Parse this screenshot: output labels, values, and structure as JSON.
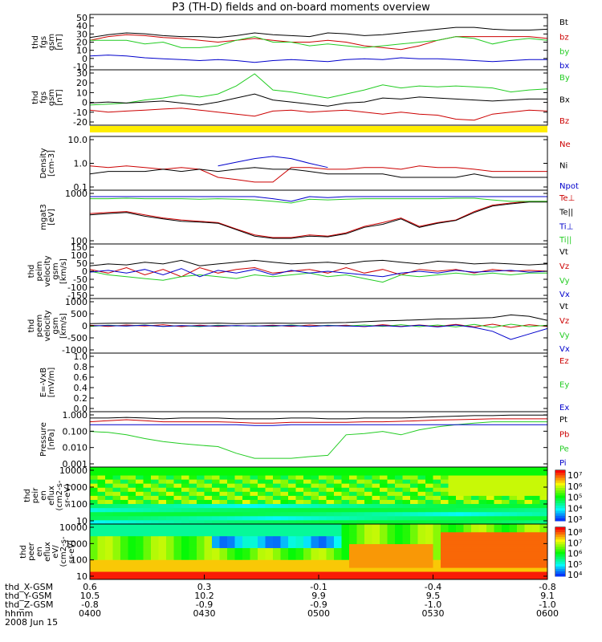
{
  "title": "P3 (TH-D) fields and on-board moments overview",
  "colors": {
    "black": "#000000",
    "red": "#cc0000",
    "green": "#22cc22",
    "blue": "#0000cc",
    "yellow": "#ffee00"
  },
  "colorbars": [
    {
      "labels": [
        "10⁷",
        "10⁶",
        "10⁵",
        "10⁴",
        "10³"
      ]
    },
    {
      "labels": [
        "10⁸",
        "10⁷",
        "10⁶",
        "10⁵",
        "10⁴"
      ]
    }
  ],
  "chart_data": [
    {
      "type": "line",
      "ylabel": [
        "thd",
        "fgs",
        "gsm",
        "[nT]"
      ],
      "ylim": [
        -10,
        50
      ],
      "yticks": [
        "50",
        "40",
        "30",
        "20",
        "10",
        "0",
        "-10"
      ],
      "series": [
        {
          "name": "Bt",
          "color": "black",
          "values": [
            25,
            28,
            30,
            29,
            27,
            26,
            26,
            25,
            27,
            30,
            28,
            27,
            26,
            30,
            29,
            27,
            28,
            30,
            32,
            34,
            36,
            36,
            34,
            33,
            33,
            34
          ]
        },
        {
          "name": "bz",
          "color": "red",
          "values": [
            22,
            26,
            28,
            27,
            25,
            24,
            22,
            20,
            22,
            24,
            22,
            20,
            20,
            22,
            20,
            16,
            14,
            12,
            16,
            22,
            26,
            26,
            26,
            26,
            26,
            24
          ]
        },
        {
          "name": "by",
          "color": "green",
          "values": [
            22,
            22,
            22,
            18,
            20,
            14,
            14,
            16,
            22,
            26,
            20,
            20,
            16,
            18,
            16,
            14,
            16,
            18,
            20,
            22,
            26,
            24,
            18,
            22,
            24,
            22
          ]
        },
        {
          "name": "bx",
          "color": "blue",
          "values": [
            5,
            6,
            5,
            3,
            2,
            1,
            0,
            1,
            0,
            -2,
            0,
            1,
            0,
            -1,
            1,
            2,
            1,
            3,
            2,
            2,
            1,
            0,
            -1,
            0,
            1,
            1
          ]
        }
      ]
    },
    {
      "type": "line",
      "ylabel": [
        "thd",
        "fgs",
        "gsm",
        "[nT]"
      ],
      "ylim": [
        -25,
        30
      ],
      "yticks": [
        "30",
        "20",
        "10",
        "0",
        "-10",
        "-20"
      ],
      "series": [
        {
          "name": "By",
          "color": "green",
          "values": [
            -5,
            -4,
            -3,
            0,
            2,
            5,
            3,
            6,
            14,
            26,
            10,
            8,
            5,
            2,
            6,
            10,
            15,
            12,
            14,
            13,
            14,
            13,
            12,
            8,
            10,
            11
          ]
        },
        {
          "name": "Bx",
          "color": "black",
          "values": [
            -3,
            -2,
            -3,
            -2,
            -1,
            -3,
            -5,
            -2,
            2,
            6,
            0,
            -2,
            -4,
            -6,
            -3,
            -2,
            2,
            1,
            3,
            2,
            1,
            0,
            -1,
            0,
            1,
            1
          ]
        },
        {
          "name": "Bz",
          "color": "red",
          "values": [
            -10,
            -12,
            -11,
            -10,
            -9,
            -8,
            -10,
            -12,
            -14,
            -16,
            -11,
            -10,
            -12,
            -11,
            -10,
            -12,
            -14,
            -12,
            -14,
            -15,
            -19,
            -20,
            -14,
            -12,
            -10,
            -11
          ]
        }
      ]
    },
    {
      "type": "line",
      "ylabel": [
        "Density",
        "[cm-3]"
      ],
      "scale": "log",
      "ylim": [
        0.1,
        10
      ],
      "yticks": [
        "10.0",
        "1.0",
        "0.1"
      ],
      "series": [
        {
          "name": "Ne",
          "color": "red",
          "values": [
            0.8,
            0.7,
            0.8,
            0.7,
            0.6,
            0.7,
            0.6,
            0.3,
            0.25,
            0.2,
            0.2,
            0.7,
            0.7,
            0.6,
            0.6,
            0.7,
            0.7,
            0.6,
            0.8,
            0.7,
            0.7,
            0.6,
            0.5,
            0.5,
            0.5,
            0.5
          ]
        },
        {
          "name": "Ni",
          "color": "black",
          "values": [
            0.4,
            0.5,
            0.5,
            0.5,
            0.6,
            0.5,
            0.6,
            0.5,
            0.6,
            0.7,
            0.6,
            0.6,
            0.5,
            0.4,
            0.4,
            0.4,
            0.4,
            0.3,
            0.3,
            0.3,
            0.3,
            0.4,
            0.3,
            0.3,
            0.3,
            0.3
          ]
        },
        {
          "name": "Npot",
          "color": "blue",
          "values": [
            null,
            null,
            null,
            null,
            null,
            null,
            null,
            0.8,
            1.1,
            1.5,
            1.8,
            1.5,
            1.0,
            0.7,
            null,
            null,
            null,
            null,
            null,
            null,
            null,
            null,
            null,
            null,
            null,
            null
          ]
        }
      ]
    },
    {
      "type": "line",
      "ylabel": [
        "mgat3",
        "[eV]"
      ],
      "scale": "log",
      "ylim": [
        30,
        10000
      ],
      "yticks": [
        "1000",
        "100"
      ],
      "series": [
        {
          "name": "Te⊥",
          "color": "red",
          "values": [
            800,
            900,
            1000,
            700,
            500,
            400,
            350,
            300,
            150,
            80,
            60,
            60,
            80,
            70,
            100,
            200,
            300,
            500,
            200,
            300,
            400,
            1000,
            2000,
            2500,
            3000,
            3000
          ]
        },
        {
          "name": "Te||",
          "color": "black",
          "values": [
            700,
            800,
            900,
            600,
            450,
            350,
            320,
            280,
            140,
            70,
            55,
            55,
            70,
            65,
            90,
            180,
            250,
            450,
            180,
            280,
            380,
            900,
            1800,
            2300,
            2800,
            2800
          ]
        },
        {
          "name": "Ti⊥",
          "color": "blue",
          "values": [
            5000,
            5000,
            5000,
            5000,
            5000,
            5000,
            5000,
            5000,
            5000,
            5000,
            4000,
            3000,
            5000,
            4500,
            5000,
            5000,
            5000,
            5000,
            5000,
            5000,
            5000,
            5000,
            5000,
            5000,
            5000,
            5000
          ]
        },
        {
          "name": "Ti||",
          "color": "green",
          "values": [
            4000,
            4000,
            4200,
            4000,
            4000,
            4000,
            3800,
            4000,
            3800,
            3500,
            3000,
            2500,
            3800,
            3500,
            3800,
            4000,
            4000,
            4000,
            4000,
            4000,
            4200,
            4200,
            3500,
            3000,
            3000,
            3000
          ]
        }
      ]
    },
    {
      "type": "line",
      "ylabel": [
        "thd",
        "peim",
        "velocity",
        "gsm",
        "[km/s]"
      ],
      "ylim": [
        -150,
        150
      ],
      "yticks": [
        "150",
        "100",
        "50",
        "0",
        "-50",
        "-100",
        "-150"
      ],
      "series": [
        {
          "name": "Vt",
          "color": "black",
          "values": [
            30,
            40,
            35,
            50,
            40,
            60,
            30,
            40,
            50,
            60,
            50,
            40,
            45,
            50,
            40,
            55,
            60,
            50,
            40,
            55,
            50,
            40,
            45,
            40,
            35,
            40
          ]
        },
        {
          "name": "Vz",
          "color": "red",
          "values": [
            10,
            -10,
            20,
            -20,
            10,
            -30,
            20,
            -10,
            10,
            20,
            -10,
            0,
            10,
            -10,
            20,
            -10,
            10,
            -20,
            10,
            0,
            10,
            -10,
            10,
            0,
            5,
            0
          ]
        },
        {
          "name": "Vy",
          "color": "green",
          "values": [
            0,
            -20,
            -30,
            -40,
            -50,
            -30,
            -20,
            -30,
            -40,
            -20,
            -30,
            -20,
            -10,
            -30,
            -20,
            -40,
            -60,
            -20,
            -30,
            -20,
            -10,
            -20,
            -10,
            -20,
            -10,
            -10
          ]
        },
        {
          "name": "Vx",
          "color": "blue",
          "values": [
            -5,
            5,
            -10,
            10,
            -20,
            15,
            -30,
            5,
            -10,
            10,
            -20,
            5,
            -10,
            0,
            -10,
            -20,
            -30,
            -10,
            0,
            -10,
            5,
            -5,
            0,
            5,
            -5,
            0
          ]
        }
      ]
    },
    {
      "type": "line",
      "ylabel": [
        "thd",
        "peem",
        "velocity",
        "gsm",
        "[km/s]"
      ],
      "ylim": [
        -1000,
        1000
      ],
      "yticks": [
        "1000",
        "500",
        "0",
        "-500",
        "-1000"
      ],
      "series": [
        {
          "name": "Vt",
          "color": "black",
          "values": [
            80,
            90,
            100,
            90,
            110,
            100,
            90,
            100,
            80,
            90,
            100,
            90,
            100,
            110,
            120,
            150,
            180,
            200,
            220,
            250,
            260,
            280,
            300,
            400,
            350,
            200
          ]
        },
        {
          "name": "Vz",
          "color": "red",
          "values": [
            20,
            -20,
            30,
            -10,
            40,
            -30,
            20,
            -20,
            10,
            -10,
            20,
            -20,
            30,
            -10,
            20,
            -30,
            40,
            -20,
            30,
            -20,
            50,
            -40,
            60,
            -60,
            40,
            -20
          ]
        },
        {
          "name": "Vy",
          "color": "green",
          "values": [
            -20,
            20,
            -10,
            30,
            -20,
            10,
            -30,
            20,
            -10,
            10,
            -20,
            30,
            -20,
            20,
            -10,
            30,
            -20,
            40,
            -30,
            30,
            -40,
            50,
            -60,
            60,
            -30,
            20
          ]
        },
        {
          "name": "Vx",
          "color": "blue",
          "values": [
            0,
            10,
            -10,
            20,
            -20,
            10,
            -10,
            0,
            10,
            -10,
            0,
            10,
            -20,
            10,
            -10,
            -20,
            10,
            -30,
            20,
            -40,
            30,
            -60,
            -200,
            -500,
            -300,
            -100
          ]
        }
      ]
    },
    {
      "type": "line",
      "ylabel": [
        "E=-VxB",
        "[mV/m]"
      ],
      "ylim": [
        0.0,
        1.0
      ],
      "yticks": [
        "1.0",
        "0.8",
        "0.6",
        "0.4",
        "0.2",
        "0.0"
      ],
      "series": [
        {
          "name": "Ez",
          "color": "red",
          "values": []
        },
        {
          "name": "Ey",
          "color": "green",
          "values": []
        },
        {
          "name": "Ex",
          "color": "blue",
          "values": []
        }
      ]
    },
    {
      "type": "line",
      "ylabel": [
        "Pressure",
        "[nPa]"
      ],
      "scale": "log",
      "ylim": [
        0.0006,
        1.2
      ],
      "yticks": [
        "1.000",
        "0.100",
        "0.010",
        "0.001"
      ],
      "series": [
        {
          "name": "Pt",
          "color": "black",
          "values": [
            0.5,
            0.5,
            0.55,
            0.5,
            0.45,
            0.5,
            0.5,
            0.5,
            0.45,
            0.45,
            0.45,
            0.5,
            0.5,
            0.45,
            0.45,
            0.5,
            0.5,
            0.5,
            0.55,
            0.6,
            0.65,
            0.7,
            0.7,
            0.75,
            0.75,
            0.75
          ]
        },
        {
          "name": "Pb",
          "color": "red",
          "values": [
            0.3,
            0.35,
            0.4,
            0.35,
            0.3,
            0.3,
            0.3,
            0.3,
            0.28,
            0.25,
            0.25,
            0.28,
            0.28,
            0.28,
            0.28,
            0.3,
            0.3,
            0.32,
            0.35,
            0.38,
            0.4,
            0.42,
            0.45,
            0.45,
            0.45,
            0.45
          ]
        },
        {
          "name": "Pe",
          "color": "green",
          "values": [
            0.08,
            0.07,
            0.05,
            0.03,
            0.02,
            0.015,
            0.012,
            0.01,
            0.004,
            0.002,
            0.002,
            0.002,
            0.0025,
            0.003,
            0.05,
            0.06,
            0.08,
            0.05,
            0.1,
            0.15,
            0.2,
            0.25,
            0.3,
            0.3,
            0.3,
            0.3
          ]
        },
        {
          "name": "Pi",
          "color": "blue",
          "values": [
            0.2,
            0.2,
            0.2,
            0.2,
            0.2,
            0.2,
            0.2,
            0.2,
            0.2,
            0.18,
            0.18,
            0.2,
            0.2,
            0.2,
            0.2,
            0.2,
            0.2,
            0.2,
            0.2,
            0.2,
            0.2,
            0.2,
            0.2,
            0.2,
            0.2,
            0.2
          ]
        }
      ]
    },
    {
      "type": "heatmap",
      "ylabel": [
        "thd",
        "peir",
        "en",
        "eflux",
        "(cm2-s-",
        "sr-eV)"
      ],
      "scale": "log",
      "ylim": [
        10,
        20000
      ],
      "yticks": [
        "10000",
        "1000",
        "100",
        "10"
      ],
      "zlim": [
        1000,
        10000000
      ]
    },
    {
      "type": "heatmap",
      "ylabel": [
        "thd",
        "peer",
        "en",
        "eflux",
        "eV/",
        "(cm2-s-",
        "sr-eV)"
      ],
      "scale": "log",
      "ylim": [
        7,
        20000
      ],
      "yticks": [
        "10000",
        "1000",
        "100",
        "10"
      ],
      "zlim": [
        5000,
        100000000
      ]
    }
  ],
  "xaxis": {
    "labels": [
      "thd_X-GSM",
      "thd_Y-GSM",
      "thd_Z-GSM",
      "hhmm",
      "2008 Jun 15"
    ],
    "ticks": [
      {
        "x": "0.6",
        "y": "10.5",
        "z": "-0.8",
        "t": "0400"
      },
      {
        "x": "0.3",
        "y": "10.2",
        "z": "-0.9",
        "t": "0430"
      },
      {
        "x": "-0.1",
        "y": "9.9",
        "z": "-0.9",
        "t": "0500"
      },
      {
        "x": "-0.4",
        "y": "9.5",
        "z": "-1.0",
        "t": "0530"
      },
      {
        "x": "-0.8",
        "y": "9.1",
        "z": "-1.0",
        "t": "0600"
      }
    ]
  }
}
